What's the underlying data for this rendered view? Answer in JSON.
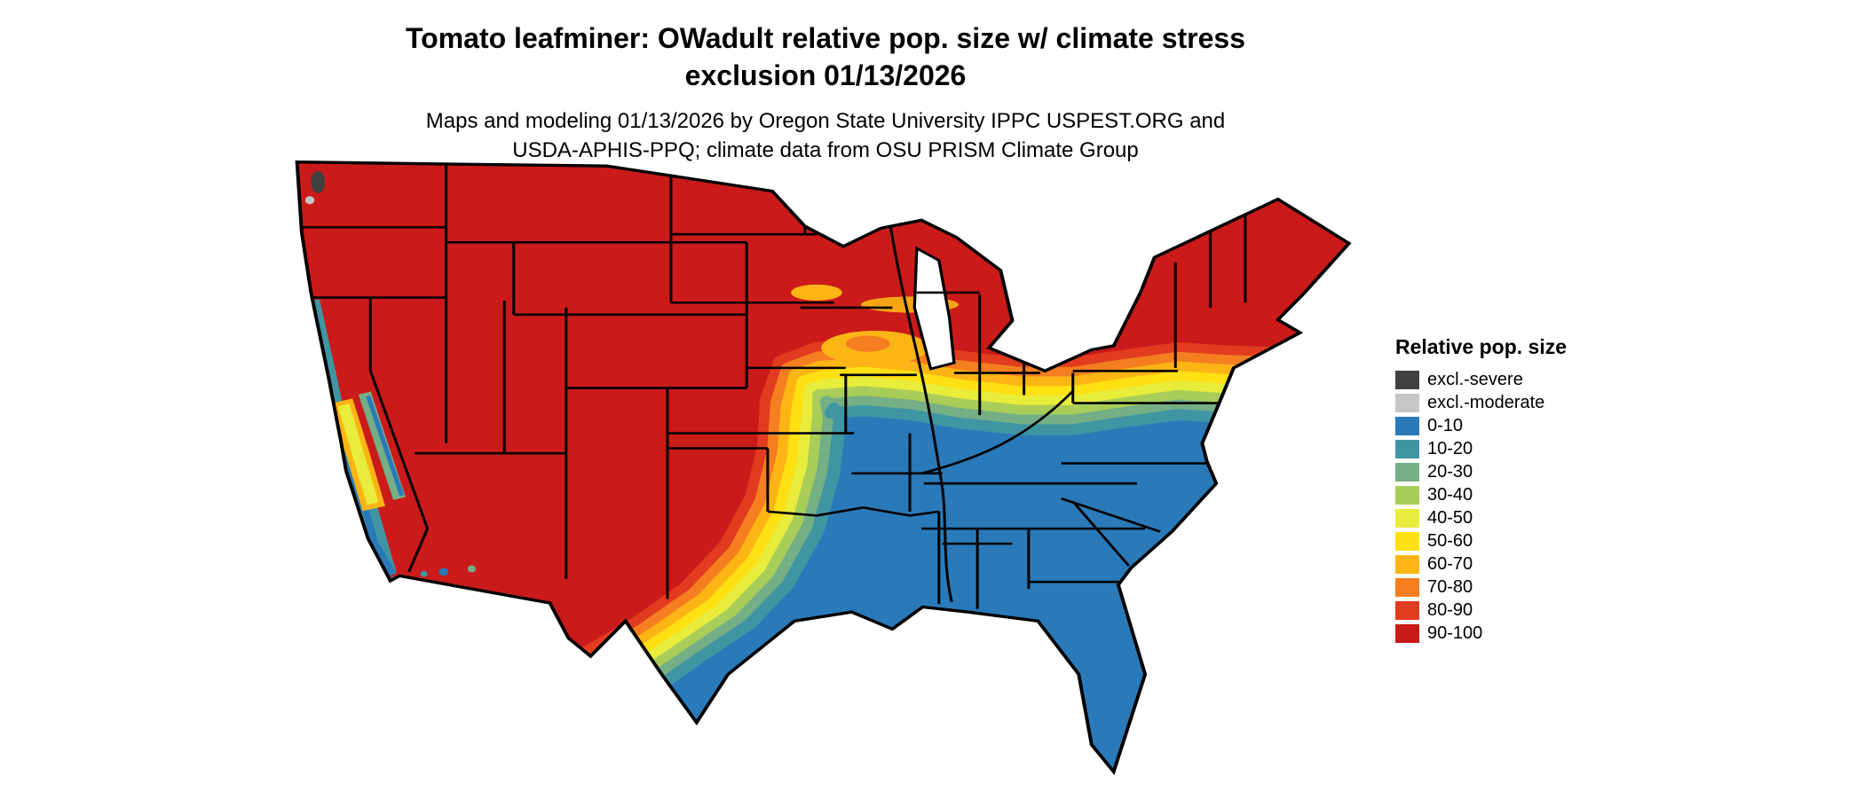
{
  "header": {
    "title_line1": "Tomato leafminer: OWadult relative pop. size w/ climate stress",
    "title_line2": "exclusion 01/13/2026",
    "subtitle_line1": "Maps and modeling 01/13/2026 by Oregon State University IPPC USPEST.ORG and",
    "subtitle_line2": "USDA-APHIS-PPQ; climate data from OSU PRISM Climate Group"
  },
  "legend": {
    "title": "Relative pop. size",
    "entries": [
      {
        "label": "excl.-severe",
        "color": "#404040"
      },
      {
        "label": "excl.-moderate",
        "color": "#c6c6c6"
      },
      {
        "label": "0-10",
        "color": "#2a7ab9"
      },
      {
        "label": "10-20",
        "color": "#4095a3"
      },
      {
        "label": "20-30",
        "color": "#74af85"
      },
      {
        "label": "30-40",
        "color": "#a9cd59"
      },
      {
        "label": "40-50",
        "color": "#e8ed3b"
      },
      {
        "label": "50-60",
        "color": "#ffe013"
      },
      {
        "label": "60-70",
        "color": "#fdb515"
      },
      {
        "label": "70-80",
        "color": "#f57e20"
      },
      {
        "label": "80-90",
        "color": "#e13b20"
      },
      {
        "label": "90-100",
        "color": "#ca1a1a"
      }
    ]
  },
  "map": {
    "description": "Continental United States choropleth of relative population size",
    "outline_color": "#000000",
    "water_color": "#ffffff"
  }
}
